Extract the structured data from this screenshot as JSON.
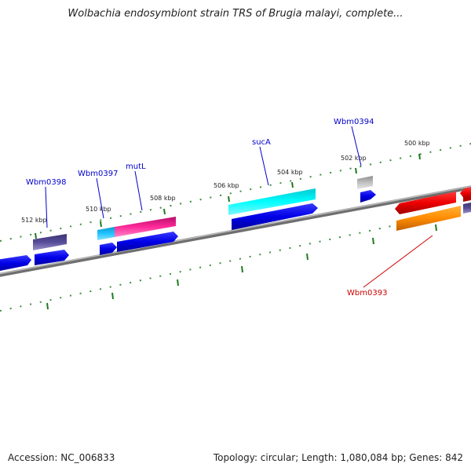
{
  "header": {
    "title": "Wolbachia endosymbiont strain TRS of Brugia malayi, complete..."
  },
  "footer": {
    "accession": "Accession: NC_006833",
    "summary": "Topology: circular; Length: 1,080,084 bp; Genes: 842"
  },
  "map": {
    "ticks": [
      "500 kbp",
      "502 kbp",
      "504 kbp",
      "506 kbp",
      "508 kbp",
      "510 kbp",
      "512 kbp"
    ],
    "genes": [
      {
        "label": "Wbm0398",
        "color": "#0000cc"
      },
      {
        "label": "Wbm0397",
        "color": "#0000cc"
      },
      {
        "label": "mutL",
        "color": "#0000cc"
      },
      {
        "label": "sucA",
        "color": "#0000cc"
      },
      {
        "label": "Wbm0394",
        "color": "#0000cc"
      },
      {
        "label": "Wbm0393",
        "color": "#cc0000"
      }
    ],
    "colors": {
      "blue": "#0000dd",
      "navy": "#4b4486",
      "cyan": "#00e5ee",
      "sky": "#1ab8ee",
      "magenta": "#ee1a8c",
      "grey": "#b8b8b8",
      "red": "#ee0000",
      "orange": "#ff8800",
      "backbone": "#888888",
      "tick": "#1e7a1e"
    }
  }
}
